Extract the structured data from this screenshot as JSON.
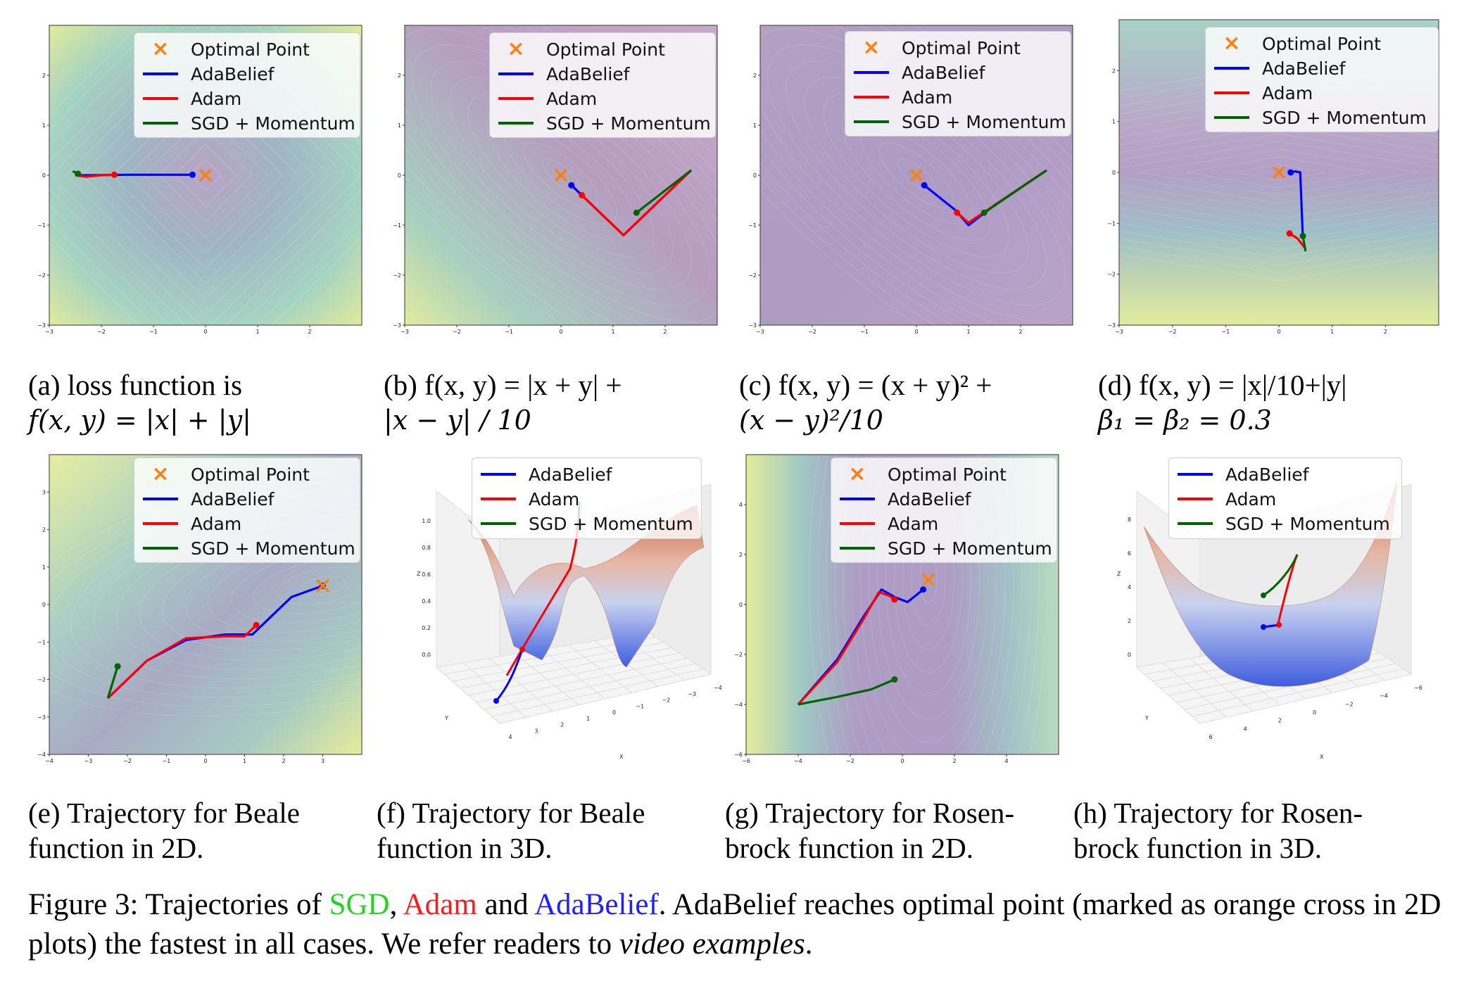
{
  "colors": {
    "adabelief": "#0000ff",
    "adam": "#ff0000",
    "sgd": "#006400",
    "optimal": "#ff7f0e"
  },
  "legend": {
    "optimal": "Optimal Point",
    "adabelief": "AdaBelief",
    "adam": "Adam",
    "sgd": "SGD + Momentum"
  },
  "captions": {
    "a": [
      "(a) loss function is",
      "f(x, y) = |x| + |y|"
    ],
    "b": [
      "(b) f(x, y) = |x + y| +",
      "|x − y| / 10"
    ],
    "c": [
      "(c) f(x, y) = (x + y)² +",
      "(x − y)²/10"
    ],
    "d": [
      "(d)  f(x, y) = |x|/10+|y|",
      "β₁ = β₂ = 0.3"
    ],
    "e": [
      "(e)   Trajectory  for  Beale",
      "function in 2D."
    ],
    "f": [
      "(f)   Trajectory  for  Beale",
      "function in 3D."
    ],
    "g": [
      "(g)  Trajectory  for  Rosen-",
      "brock function in 2D."
    ],
    "h": [
      "(h)  Trajectory  for  Rosen-",
      "brock function in 3D."
    ]
  },
  "figure_caption": {
    "prefix": "Figure 3: Trajectories of ",
    "sgd": "SGD",
    "sep1": ", ",
    "adam": "Adam",
    "sep2": " and ",
    "ada": "AdaBelief",
    "rest": ". AdaBelief reaches optimal point (marked as orange cross in 2D plots) the fastest in all cases. We refer readers to ",
    "italic": "video examples",
    "end": "."
  },
  "chart_data": [
    {
      "id": "a",
      "type": "line",
      "xlim": [
        -3,
        3
      ],
      "ylim": [
        -3,
        3
      ],
      "xticks": [
        "−3",
        "−2",
        "−1",
        "0",
        "1",
        "2"
      ],
      "yticks": [
        "−3",
        "−2",
        "−1",
        "0",
        "1",
        "2"
      ],
      "optimal": [
        0,
        0
      ],
      "series": [
        {
          "name": "AdaBelief",
          "x": [
            -2.5,
            -2.2,
            -1.5,
            -0.8,
            -0.25
          ],
          "y": [
            0.0,
            0.0,
            0.01,
            0.01,
            0.01
          ],
          "end": [
            -0.25,
            0.01
          ]
        },
        {
          "name": "Adam",
          "x": [
            -2.5,
            -2.3,
            -2.0,
            -1.75
          ],
          "y": [
            0.0,
            -0.03,
            0.0,
            0.01
          ],
          "end": [
            -1.75,
            0.01
          ]
        },
        {
          "name": "SGD + Momentum",
          "x": [
            -2.55,
            -2.45
          ],
          "y": [
            0.08,
            0.03
          ],
          "end": [
            -2.45,
            0.03
          ]
        }
      ]
    },
    {
      "id": "b",
      "type": "line",
      "xlim": [
        -3,
        3
      ],
      "ylim": [
        -3,
        3
      ],
      "xticks": [
        "−3",
        "−2",
        "−1",
        "0",
        "1",
        "2"
      ],
      "yticks": [
        "−3",
        "−2",
        "−1",
        "0",
        "1",
        "2"
      ],
      "optimal": [
        0,
        0
      ],
      "series": [
        {
          "name": "AdaBelief",
          "x": [
            2.5,
            1.2,
            0.2
          ],
          "y": [
            0.1,
            -1.2,
            -0.2
          ],
          "end": [
            0.2,
            -0.2
          ]
        },
        {
          "name": "Adam",
          "x": [
            2.5,
            1.2,
            0.4
          ],
          "y": [
            0.1,
            -1.2,
            -0.4
          ],
          "end": [
            0.4,
            -0.4
          ]
        },
        {
          "name": "SGD + Momentum",
          "x": [
            2.5,
            1.45
          ],
          "y": [
            0.1,
            -0.75
          ],
          "end": [
            1.45,
            -0.75
          ]
        }
      ]
    },
    {
      "id": "c",
      "type": "line",
      "xlim": [
        -3,
        3
      ],
      "ylim": [
        -3,
        3
      ],
      "xticks": [
        "−3",
        "−2",
        "−1",
        "0",
        "1",
        "2"
      ],
      "yticks": [
        "−3",
        "−2",
        "−1",
        "0",
        "1",
        "2"
      ],
      "optimal": [
        0,
        0
      ],
      "series": [
        {
          "name": "AdaBelief",
          "x": [
            2.5,
            1.5,
            1.0,
            0.75,
            0.15
          ],
          "y": [
            0.1,
            -0.6,
            -1.0,
            -0.7,
            -0.2
          ],
          "end": [
            0.15,
            -0.2
          ]
        },
        {
          "name": "Adam",
          "x": [
            2.5,
            1.5,
            1.0,
            0.78
          ],
          "y": [
            0.1,
            -0.6,
            -0.95,
            -0.75
          ],
          "end": [
            0.78,
            -0.75
          ]
        },
        {
          "name": "SGD + Momentum",
          "x": [
            2.5,
            1.3
          ],
          "y": [
            0.1,
            -0.75
          ],
          "end": [
            1.3,
            -0.75
          ]
        }
      ]
    },
    {
      "id": "d",
      "type": "line",
      "xlim": [
        -3,
        3
      ],
      "ylim": [
        -3,
        3
      ],
      "xticks": [
        "−3",
        "−2",
        "−1",
        "0",
        "1",
        "2"
      ],
      "yticks": [
        "−3",
        "−2",
        "−1",
        "0",
        "1",
        "2"
      ],
      "optimal": [
        0,
        0
      ],
      "series": [
        {
          "name": "AdaBelief",
          "x": [
            0.45,
            0.4,
            0.3,
            0.22
          ],
          "y": [
            -1.3,
            0.0,
            0.02,
            0.0
          ],
          "end": [
            0.22,
            0.0
          ]
        },
        {
          "name": "Adam",
          "x": [
            0.5,
            0.35,
            0.2
          ],
          "y": [
            -1.5,
            -1.3,
            -1.2
          ],
          "end": [
            0.2,
            -1.2
          ]
        },
        {
          "name": "SGD + Momentum",
          "x": [
            0.5,
            0.45
          ],
          "y": [
            -1.55,
            -1.25
          ],
          "end": [
            0.45,
            -1.25
          ]
        }
      ]
    },
    {
      "id": "e",
      "type": "line",
      "xlim": [
        -4,
        4
      ],
      "ylim": [
        -4,
        4
      ],
      "xticks": [
        "−4",
        "−3",
        "−2",
        "−1",
        "0",
        "1",
        "2",
        "3"
      ],
      "yticks": [
        "−4",
        "−3",
        "−2",
        "−1",
        "0",
        "1",
        "2",
        "3"
      ],
      "optimal": [
        3,
        0.5
      ],
      "series": [
        {
          "name": "AdaBelief",
          "x": [
            -2.5,
            -1.5,
            -0.5,
            0.5,
            1.2,
            1.6,
            2.2,
            3.0
          ],
          "y": [
            -2.5,
            -1.5,
            -0.95,
            -0.8,
            -0.8,
            -0.4,
            0.2,
            0.5
          ],
          "end": [
            3.0,
            0.5
          ]
        },
        {
          "name": "Adam",
          "x": [
            -2.5,
            -1.5,
            -0.5,
            0.5,
            1.0,
            1.3
          ],
          "y": [
            -2.5,
            -1.5,
            -0.9,
            -0.85,
            -0.85,
            -0.55
          ],
          "end": [
            1.3,
            -0.55
          ]
        },
        {
          "name": "SGD + Momentum",
          "x": [
            -2.5,
            -2.25
          ],
          "y": [
            -2.5,
            -1.65
          ],
          "end": [
            -2.25,
            -1.65
          ]
        }
      ]
    },
    {
      "id": "f",
      "type": "line",
      "xlim": [
        -4,
        4
      ],
      "ylim": [
        0,
        1.1
      ],
      "yticks": [
        "0.0",
        "0.2",
        "0.4",
        "0.6",
        "0.8",
        "1.0"
      ],
      "xticks": [
        "4",
        "3",
        "2",
        "1",
        "0",
        "−1",
        "−2",
        "−3",
        "−4"
      ],
      "xlabel": "X",
      "ylabel": "Y",
      "zlabel": "Z",
      "series": [
        {
          "name": "AdaBelief"
        },
        {
          "name": "Adam"
        },
        {
          "name": "SGD + Momentum"
        }
      ]
    },
    {
      "id": "g",
      "type": "line",
      "xlim": [
        -6,
        6
      ],
      "ylim": [
        -6,
        6
      ],
      "xticks": [
        "−6",
        "−4",
        "−2",
        "0",
        "2",
        "4"
      ],
      "yticks": [
        "−6",
        "−4",
        "−2",
        "0",
        "2",
        "4"
      ],
      "optimal": [
        1,
        1
      ],
      "series": [
        {
          "name": "AdaBelief",
          "x": [
            -4,
            -2.5,
            -1.5,
            -0.8,
            -0.3,
            0.2,
            0.8
          ],
          "y": [
            -4,
            -2.2,
            -0.5,
            0.6,
            0.3,
            0.1,
            0.6
          ],
          "end": [
            0.8,
            0.6
          ]
        },
        {
          "name": "Adam",
          "x": [
            -4,
            -2.5,
            -1.5,
            -0.9,
            -0.5,
            -0.3
          ],
          "y": [
            -4,
            -2.3,
            -0.6,
            0.5,
            0.35,
            0.2
          ],
          "end": [
            -0.3,
            0.2
          ]
        },
        {
          "name": "SGD + Momentum",
          "x": [
            -4,
            -2.5,
            -1.2,
            -0.3
          ],
          "y": [
            -4,
            -3.7,
            -3.4,
            -3.0
          ],
          "end": [
            -0.3,
            -3.0
          ]
        }
      ]
    },
    {
      "id": "h",
      "type": "line",
      "xlim": [
        -6,
        6
      ],
      "ylim": [
        0,
        8
      ],
      "yticks": [
        "0",
        "2",
        "4",
        "6",
        "8"
      ],
      "xticks": [
        "6",
        "4",
        "2",
        "0",
        "−2",
        "−4",
        "−6"
      ],
      "xlabel": "X",
      "ylabel": "Y",
      "zlabel": "Z",
      "series": [
        {
          "name": "AdaBelief"
        },
        {
          "name": "Adam"
        },
        {
          "name": "SGD + Momentum"
        }
      ]
    }
  ]
}
